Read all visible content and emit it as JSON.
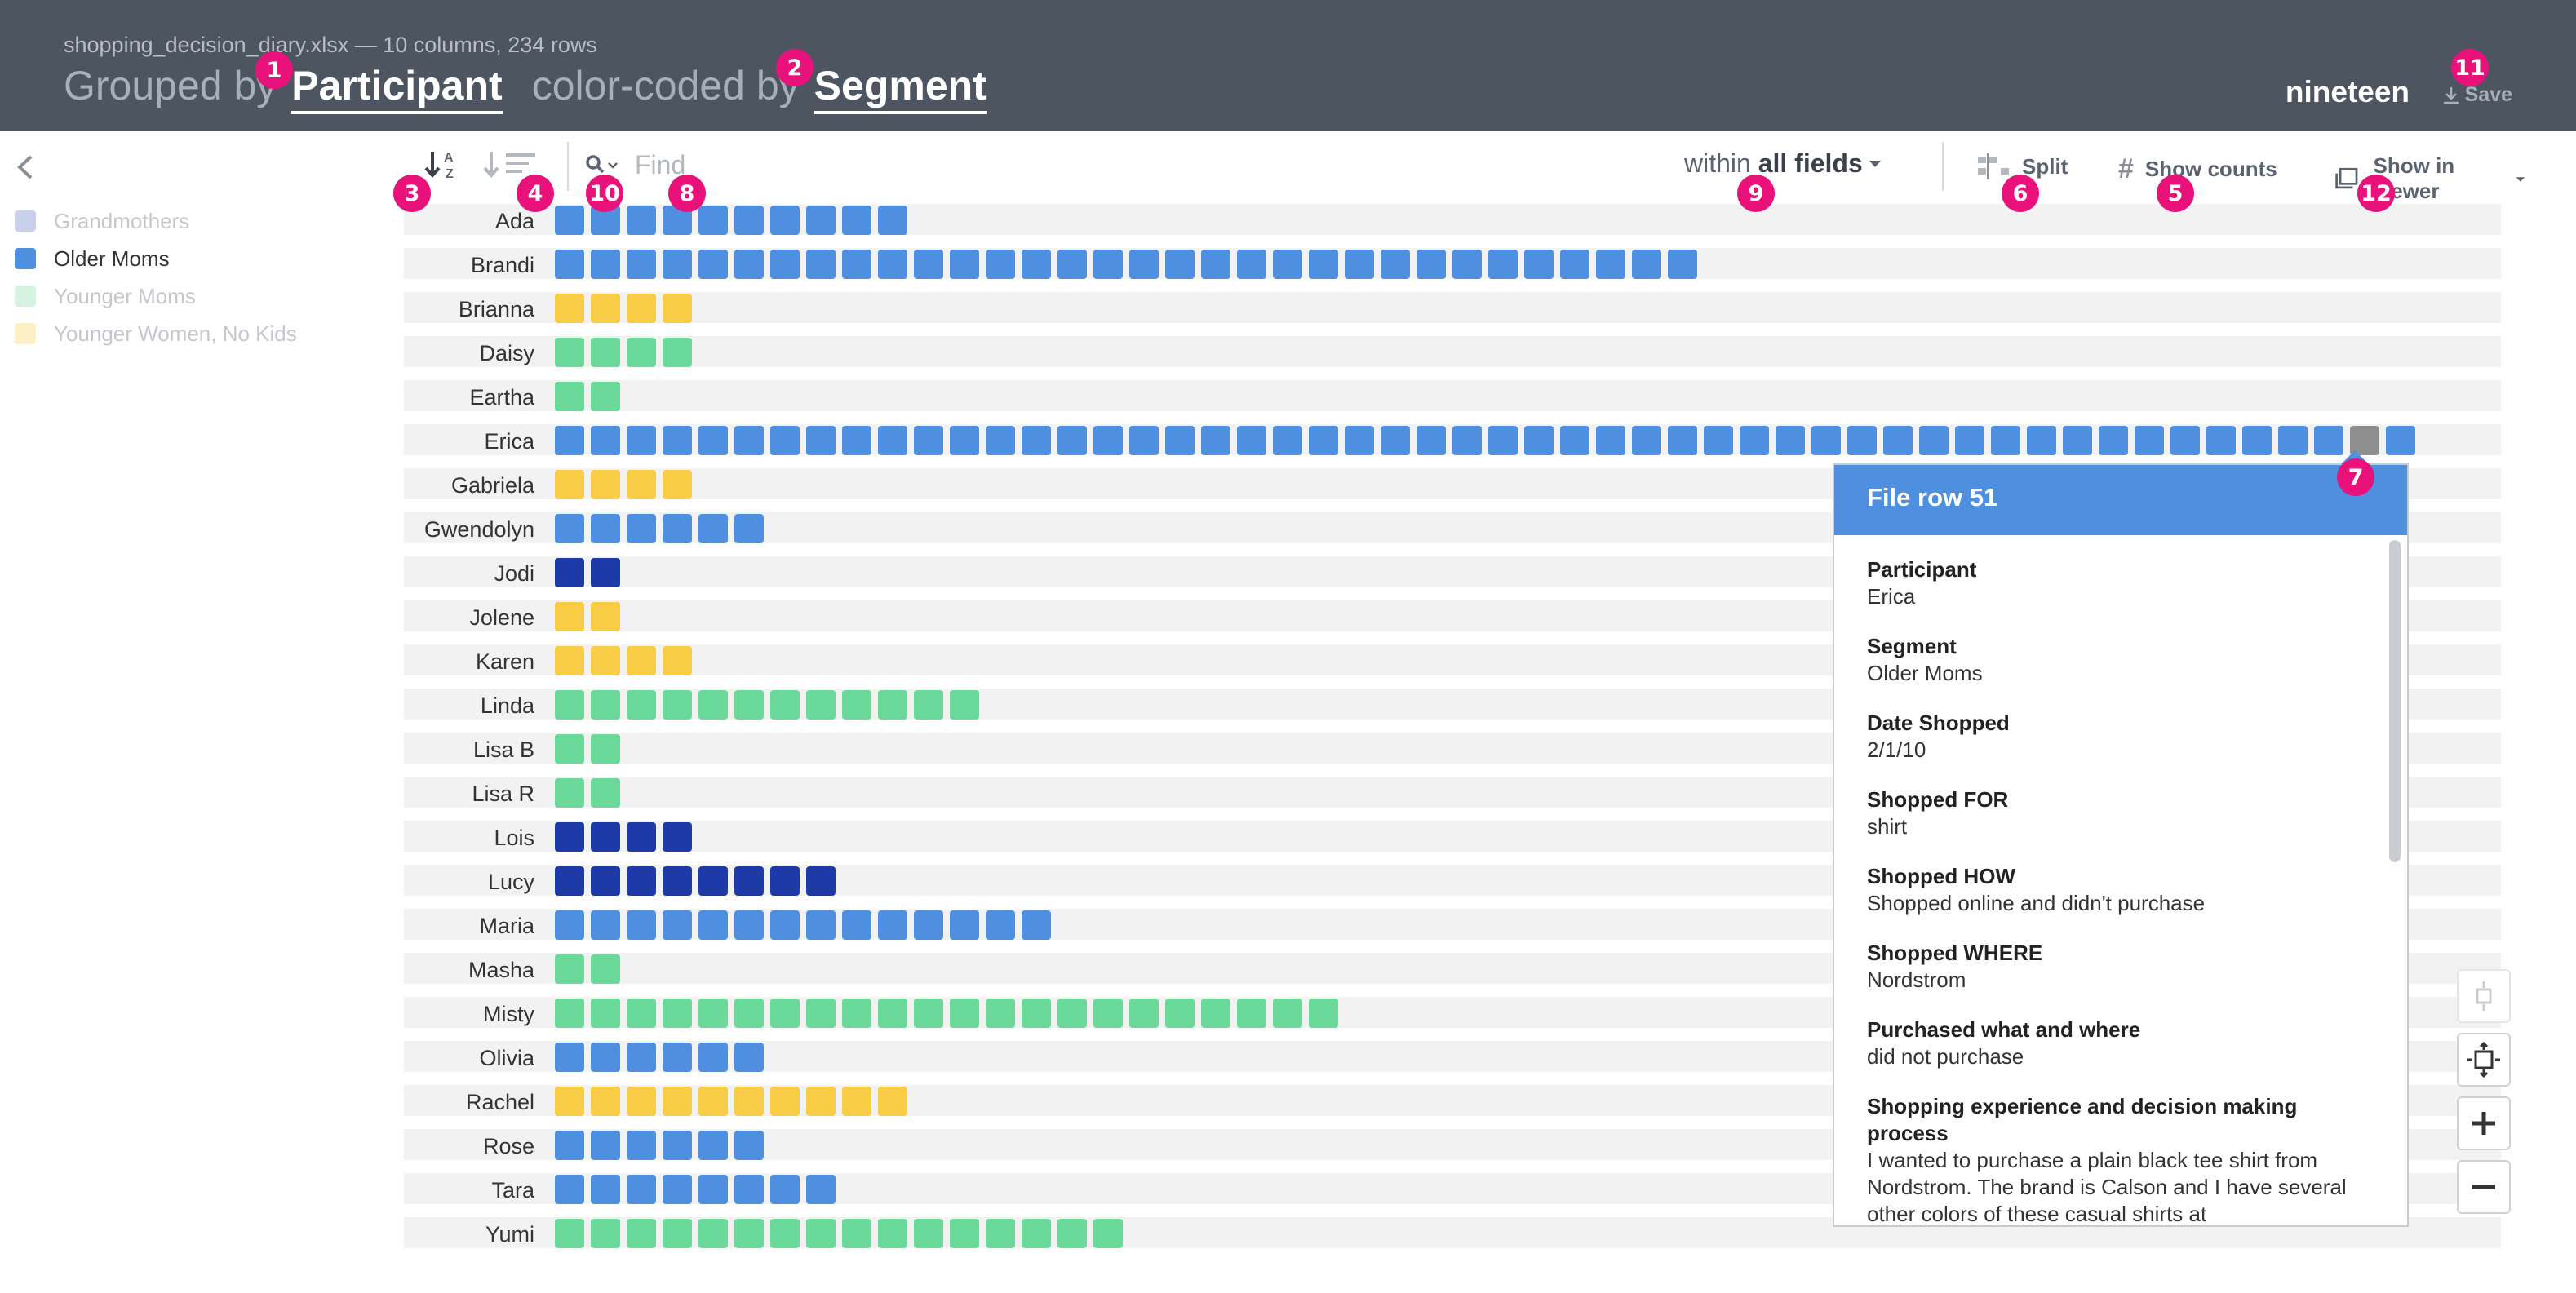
{
  "header": {
    "file_info": "shopping_decision_diary.xlsx — 10 columns, 234 rows",
    "grouped_prefix": "Grouped by",
    "grouped_value": "Participant",
    "color_prefix": "color-coded by",
    "color_value": "Segment",
    "user": "nineteen",
    "save_label": "Save"
  },
  "legend": [
    {
      "label": "Grandmothers",
      "color": "#c9d0ec",
      "active": false
    },
    {
      "label": "Older Moms",
      "color": "#4e8fe0",
      "active": true
    },
    {
      "label": "Younger Moms",
      "color": "#d6f3e2",
      "active": false
    },
    {
      "label": "Younger Women, No Kids",
      "color": "#fbf0c6",
      "active": false
    }
  ],
  "colors": {
    "Grandmothers": "#1e3aa8",
    "Older Moms": "#4e8fe0",
    "Younger Moms": "#6ad99a",
    "Younger Women, No Kids": "#f8cc45",
    "selected": "#8e8e8e"
  },
  "toolbar": {
    "find_placeholder": "Find",
    "within_prefix": "within",
    "within_value": "all fields",
    "split_label": "Split",
    "counts_label": "Show counts",
    "viewer_label": "Show in viewer"
  },
  "badges": [
    "1",
    "2",
    "3",
    "4",
    "5",
    "6",
    "7",
    "8",
    "9",
    "10",
    "11",
    "12"
  ],
  "rows": [
    {
      "name": "Ada",
      "segment": "Older Moms",
      "count": 10
    },
    {
      "name": "Brandi",
      "segment": "Older Moms",
      "count": 32
    },
    {
      "name": "Brianna",
      "segment": "Younger Women, No Kids",
      "count": 4
    },
    {
      "name": "Daisy",
      "segment": "Younger Moms",
      "count": 4
    },
    {
      "name": "Eartha",
      "segment": "Younger Moms",
      "count": 2
    },
    {
      "name": "Erica",
      "segment": "Older Moms",
      "count": 52,
      "selected_index": 50
    },
    {
      "name": "Gabriela",
      "segment": "Younger Women, No Kids",
      "count": 4
    },
    {
      "name": "Gwendolyn",
      "segment": "Older Moms",
      "count": 6
    },
    {
      "name": "Jodi",
      "segment": "Grandmothers",
      "count": 2
    },
    {
      "name": "Jolene",
      "segment": "Younger Women, No Kids",
      "count": 2
    },
    {
      "name": "Karen",
      "segment": "Younger Women, No Kids",
      "count": 4
    },
    {
      "name": "Linda",
      "segment": "Younger Moms",
      "count": 12
    },
    {
      "name": "Lisa B",
      "segment": "Younger Moms",
      "count": 2
    },
    {
      "name": "Lisa R",
      "segment": "Younger Moms",
      "count": 2
    },
    {
      "name": "Lois",
      "segment": "Grandmothers",
      "count": 4
    },
    {
      "name": "Lucy",
      "segment": "Grandmothers",
      "count": 8
    },
    {
      "name": "Maria",
      "segment": "Older Moms",
      "count": 14
    },
    {
      "name": "Masha",
      "segment": "Younger Moms",
      "count": 2
    },
    {
      "name": "Misty",
      "segment": "Younger Moms",
      "count": 22
    },
    {
      "name": "Olivia",
      "segment": "Older Moms",
      "count": 6
    },
    {
      "name": "Rachel",
      "segment": "Younger Women, No Kids",
      "count": 10
    },
    {
      "name": "Rose",
      "segment": "Older Moms",
      "count": 6
    },
    {
      "name": "Tara",
      "segment": "Older Moms",
      "count": 8
    },
    {
      "name": "Yumi",
      "segment": "Younger Moms",
      "count": 16
    }
  ],
  "popup": {
    "title": "File row 51",
    "fields": [
      {
        "label": "Participant",
        "value": "Erica"
      },
      {
        "label": "Segment",
        "value": "Older Moms"
      },
      {
        "label": "Date Shopped",
        "value": "2/1/10"
      },
      {
        "label": "Shopped FOR",
        "value": "shirt"
      },
      {
        "label": "Shopped HOW",
        "value": "Shopped online and didn't purchase"
      },
      {
        "label": "Shopped WHERE",
        "value": "Nordstrom"
      },
      {
        "label": "Purchased what and where",
        "value": "did not purchase"
      },
      {
        "label": "Shopping experience and decision making process",
        "value": "I wanted to purchase a plain black tee shirt from Nordstrom. The brand is Calson and I have several other colors of these casual shirts at"
      }
    ]
  },
  "icons": {
    "sort_alpha": "sort-alpha-icon",
    "sort_count": "sort-count-icon",
    "search": "search-icon",
    "split": "split-icon",
    "hash": "hash-icon",
    "viewer": "window-icon",
    "save": "download-icon",
    "collapse": "chevron-left-icon",
    "fit": "fit-view-icon",
    "zoom_in": "plus-icon",
    "zoom_out": "minus-icon"
  }
}
